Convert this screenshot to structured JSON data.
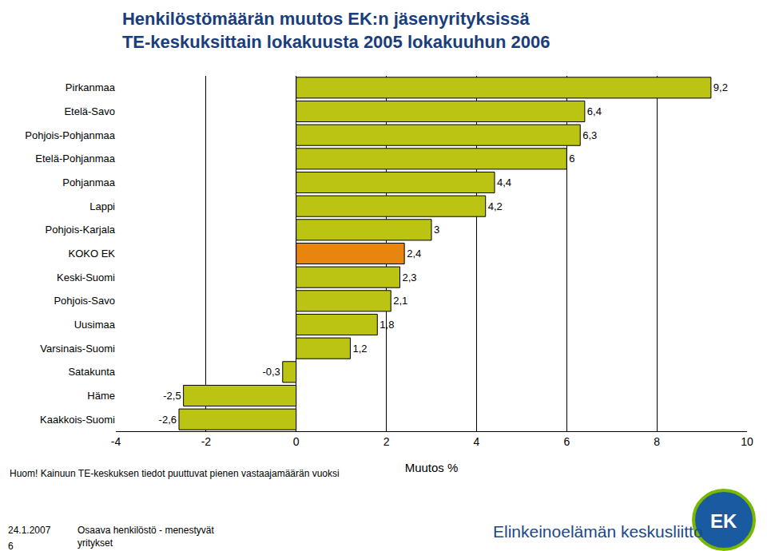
{
  "chart_data": {
    "type": "bar",
    "orientation": "horizontal",
    "title": "Henkilöstömäärän muutos EK:n jäsenyrityksissä",
    "subtitle": "TE-keskuksittain lokakuusta 2005 lokakuuhun 2006",
    "x_label": "Muutos %",
    "categories": [
      "Pirkanmaa",
      "Etelä-Savo",
      "Pohjois-Pohjanmaa",
      "Etelä-Pohjanmaa",
      "Pohjanmaa",
      "Lappi",
      "Pohjois-Karjala",
      "KOKO EK",
      "Keski-Suomi",
      "Pohjois-Savo",
      "Uusimaa",
      "Varsinais-Suomi",
      "Satakunta",
      "Häme",
      "Kaakkois-Suomi"
    ],
    "values": [
      9.2,
      6.4,
      6.3,
      6,
      4.4,
      4.2,
      3,
      2.4,
      2.3,
      2.1,
      1.8,
      1.2,
      -0.3,
      -2.5,
      -2.6
    ],
    "value_labels": [
      "9,2",
      "6,4",
      "6,3",
      "6",
      "4,4",
      "4,2",
      "3",
      "2,4",
      "2,3",
      "2,1",
      "1,8",
      "1,2",
      "-0,3",
      "-2,5",
      "-2,6"
    ],
    "data_labels": true,
    "colors": [
      "#bcc413",
      "#bcc413",
      "#bcc413",
      "#bcc413",
      "#bcc413",
      "#bcc413",
      "#bcc413",
      "#e8850f",
      "#bcc413",
      "#bcc413",
      "#bcc413",
      "#bcc413",
      "#bcc413",
      "#bcc413",
      "#bcc413"
    ],
    "xlim": [
      -4,
      10
    ],
    "xticks": [
      -4,
      -2,
      0,
      2,
      4,
      6,
      8,
      10
    ],
    "grid": true,
    "annotations": [
      "Huom! Kainuun TE-keskuksen tiedot puuttuvat pienen vastaajamäärän vuoksi",
      "24.1.2007",
      "6",
      "Osaava henkilöstö - menestyvät",
      "yritykset",
      "Elinkeinoelämän keskusliitto",
      "EK"
    ]
  }
}
